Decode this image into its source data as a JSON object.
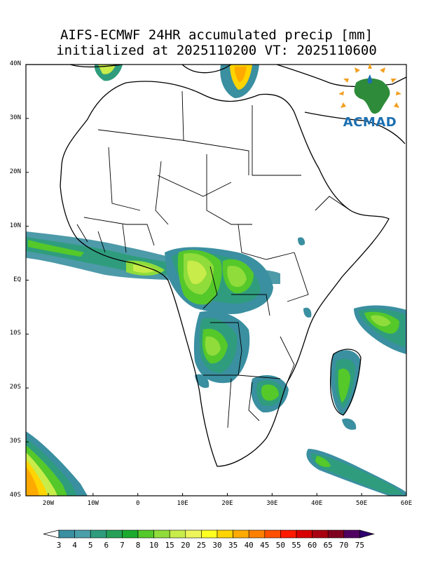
{
  "title": {
    "line1": "AIFS-ECMWF 24HR accumulated precip [mm]",
    "line2": "initialized at 2025110200 VT: 2025110600"
  },
  "map": {
    "lat_ticks": [
      "40N",
      "30N",
      "20N",
      "10N",
      "EQ",
      "10S",
      "20S",
      "30S",
      "40S"
    ],
    "lon_ticks": [
      "20W",
      "10W",
      "0",
      "10E",
      "20E",
      "30E",
      "40E",
      "50E",
      "60E"
    ],
    "extent": {
      "lon_min": -25,
      "lon_max": 60,
      "lat_min": -40,
      "lat_max": 40
    }
  },
  "colorbar": {
    "labels": [
      "3",
      "4",
      "5",
      "6",
      "7",
      "8",
      "10",
      "15",
      "20",
      "25",
      "30",
      "35",
      "40",
      "45",
      "50",
      "55",
      "60",
      "65",
      "70",
      "75"
    ],
    "colors": [
      "#ffffff",
      "#3a8fa0",
      "#4a9fa8",
      "#2f9d7d",
      "#25a056",
      "#1aaa2e",
      "#55c82a",
      "#8fdc3a",
      "#c8ec4a",
      "#eef55a",
      "#ffff20",
      "#ffd400",
      "#ffaa00",
      "#ff8000",
      "#ff5000",
      "#ff1a00",
      "#d80000",
      "#a80010",
      "#800020",
      "#500060",
      "#300070"
    ]
  },
  "logo": {
    "text": "ACMAD",
    "brand_color": "#1c6fb0"
  }
}
